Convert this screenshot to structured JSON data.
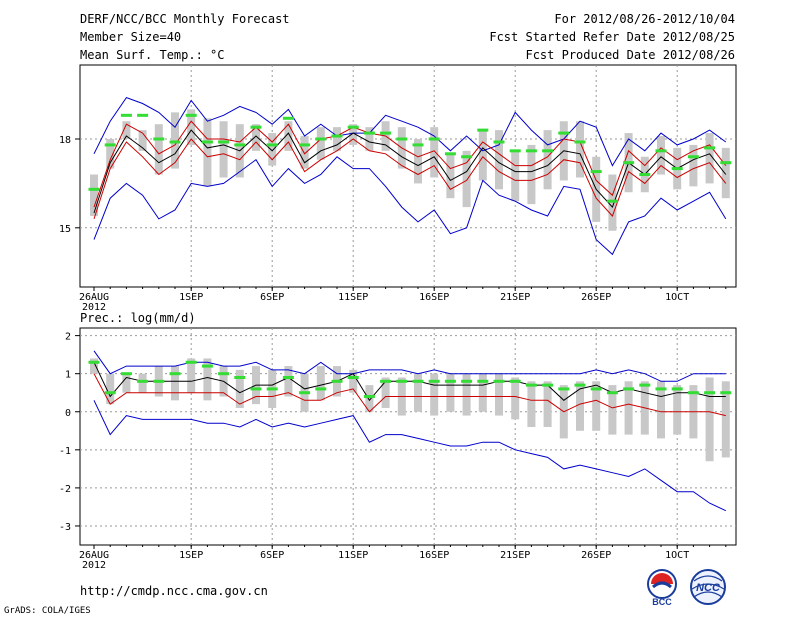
{
  "header": {
    "title": "DERF/NCC/BCC Monthly Forecast",
    "member_size": "Member Size=40",
    "variable": "Mean Surf. Temp.: °C",
    "period": "For 2012/08/26-2012/10/04",
    "start_date": "Fcst Started Refer Date 2012/08/25",
    "produced_date": "Fcst Produced Date 2012/08/26"
  },
  "footer": {
    "url": "http://cmdp.ncc.cma.gov.cn",
    "credit": "GrADS: COLA/IGES",
    "logo_bcc": "BCC",
    "logo_ncc": "NCC"
  },
  "colors": {
    "max_min": "#0000cc",
    "pct": "#cc0000",
    "mean": "#000000",
    "obs": "#33dd33",
    "bar": "#c8c8c8"
  },
  "chart_data": [
    {
      "type": "line",
      "title": "Mean Surf. Temp.: °C",
      "x_labels": [
        "26AUG",
        "1SEP",
        "6SEP",
        "11SEP",
        "16SEP",
        "21SEP",
        "26SEP",
        "1OCT"
      ],
      "x_label_days": [
        0,
        6,
        11,
        16,
        21,
        26,
        31,
        36
      ],
      "x_year": "2012",
      "y_ticks": [
        15,
        18
      ],
      "ylim": [
        13.0,
        20.5
      ],
      "series": [
        {
          "name": "max",
          "values": [
            17.5,
            18.6,
            19.4,
            19.2,
            18.9,
            18.4,
            19.3,
            18.6,
            18.8,
            19.1,
            18.9,
            18.5,
            19.0,
            18.1,
            18.5,
            18.1,
            18.2,
            18.2,
            18.8,
            18.6,
            18.4,
            18.1,
            17.6,
            18.1,
            17.6,
            17.8,
            18.9,
            18.3,
            17.8,
            18.0,
            18.6,
            18.4,
            17.1,
            18.0,
            17.6,
            18.2,
            17.8,
            18.0,
            18.3,
            17.9
          ]
        },
        {
          "name": "p75",
          "values": [
            15.7,
            17.3,
            18.5,
            18.2,
            17.5,
            17.8,
            18.6,
            18.0,
            18.0,
            17.9,
            18.4,
            17.9,
            18.5,
            17.5,
            18.0,
            18.1,
            18.4,
            18.2,
            18.1,
            17.7,
            17.4,
            17.6,
            17.0,
            17.2,
            17.9,
            17.5,
            17.1,
            17.1,
            17.4,
            18.0,
            17.9,
            16.6,
            16.1,
            17.6,
            17.1,
            17.7,
            17.3,
            17.6,
            17.8,
            17.1
          ]
        },
        {
          "name": "mean",
          "values": [
            15.5,
            17.2,
            18.1,
            17.7,
            17.2,
            17.5,
            18.3,
            17.7,
            17.8,
            17.6,
            18.1,
            17.6,
            18.2,
            17.2,
            17.6,
            17.8,
            18.2,
            17.9,
            17.8,
            17.4,
            17.1,
            17.4,
            16.6,
            16.9,
            17.7,
            17.2,
            16.9,
            16.9,
            17.1,
            17.6,
            17.5,
            16.3,
            15.7,
            17.2,
            16.8,
            17.4,
            17.0,
            17.3,
            17.5,
            16.8
          ]
        },
        {
          "name": "p25",
          "values": [
            15.3,
            17.0,
            17.9,
            17.4,
            16.8,
            17.2,
            18.0,
            17.4,
            17.5,
            17.3,
            17.9,
            17.3,
            17.9,
            16.9,
            17.3,
            17.6,
            18.0,
            17.6,
            17.5,
            17.1,
            16.8,
            17.1,
            16.3,
            16.6,
            17.4,
            16.9,
            16.6,
            16.6,
            16.8,
            17.3,
            17.2,
            16.0,
            15.4,
            16.9,
            16.5,
            17.1,
            16.7,
            17.0,
            17.2,
            16.5
          ]
        },
        {
          "name": "min",
          "values": [
            14.6,
            16.0,
            16.5,
            16.1,
            15.3,
            15.6,
            16.5,
            16.4,
            16.5,
            16.9,
            17.3,
            16.4,
            17.0,
            16.5,
            16.8,
            17.4,
            17.0,
            17.0,
            16.4,
            15.7,
            15.2,
            15.6,
            14.8,
            15.0,
            16.6,
            16.1,
            15.9,
            15.6,
            15.4,
            16.4,
            16.3,
            14.6,
            14.1,
            15.2,
            15.4,
            16.0,
            15.6,
            15.9,
            16.2,
            15.3
          ]
        }
      ],
      "obs": [
        16.3,
        17.8,
        18.8,
        18.8,
        18.0,
        17.9,
        18.8,
        17.9,
        17.9,
        17.8,
        18.4,
        17.8,
        18.7,
        17.8,
        18.0,
        18.1,
        18.4,
        18.2,
        18.2,
        18.0,
        17.8,
        18.0,
        17.5,
        17.4,
        18.3,
        17.9,
        17.6,
        17.6,
        17.6,
        18.2,
        17.9,
        16.9,
        15.9,
        17.2,
        16.8,
        17.6,
        17.0,
        17.4,
        17.7,
        17.2
      ],
      "box_low": [
        15.4,
        17.0,
        18.0,
        17.6,
        16.8,
        17.0,
        17.8,
        16.4,
        16.7,
        16.7,
        17.6,
        17.1,
        17.6,
        17.0,
        17.3,
        17.6,
        17.8,
        17.6,
        17.6,
        17.0,
        16.5,
        16.7,
        16.0,
        15.7,
        16.6,
        16.3,
        15.9,
        15.8,
        16.3,
        16.6,
        16.7,
        15.2,
        14.9,
        16.2,
        16.2,
        16.8,
        16.3,
        16.4,
        16.5,
        16.0
      ],
      "box_high": [
        16.8,
        18.0,
        18.6,
        18.3,
        18.5,
        18.9,
        19.0,
        18.7,
        18.6,
        18.5,
        18.5,
        18.2,
        18.6,
        18.1,
        18.4,
        18.4,
        18.5,
        18.4,
        18.6,
        18.4,
        18.0,
        18.4,
        17.5,
        17.6,
        18.3,
        18.3,
        17.6,
        17.8,
        18.3,
        18.6,
        18.6,
        17.4,
        16.8,
        18.2,
        17.4,
        18.1,
        17.7,
        17.8,
        18.2,
        17.7
      ]
    },
    {
      "type": "line",
      "title": "Prec.: log(mm/d)",
      "x_labels": [
        "26AUG",
        "1SEP",
        "6SEP",
        "11SEP",
        "16SEP",
        "21SEP",
        "26SEP",
        "1OCT"
      ],
      "x_label_days": [
        0,
        6,
        11,
        16,
        21,
        26,
        31,
        36
      ],
      "x_year": "2012",
      "y_ticks": [
        -3,
        -2,
        -1,
        0,
        1,
        2
      ],
      "ylim": [
        -3.5,
        2.2
      ],
      "series": [
        {
          "name": "max",
          "values": [
            1.6,
            1.0,
            1.2,
            1.2,
            1.2,
            1.2,
            1.3,
            1.3,
            1.2,
            1.2,
            1.3,
            1.1,
            1.1,
            1.0,
            1.3,
            1.0,
            1.0,
            1.1,
            1.1,
            1.1,
            1.0,
            1.1,
            1.0,
            1.0,
            1.0,
            1.0,
            1.0,
            1.0,
            1.0,
            1.0,
            1.0,
            1.1,
            1.0,
            1.1,
            1.0,
            0.8,
            0.8,
            1.0,
            1.0,
            1.0
          ]
        },
        {
          "name": "mean",
          "values": [
            1.3,
            0.4,
            0.9,
            0.8,
            0.8,
            0.8,
            0.8,
            0.9,
            0.8,
            0.5,
            0.7,
            0.7,
            0.9,
            0.6,
            0.7,
            0.8,
            1.0,
            0.3,
            0.8,
            0.8,
            0.8,
            0.7,
            0.7,
            0.7,
            0.7,
            0.8,
            0.8,
            0.7,
            0.7,
            0.3,
            0.6,
            0.7,
            0.5,
            0.6,
            0.5,
            0.4,
            0.5,
            0.5,
            0.4,
            0.4
          ]
        },
        {
          "name": "p25",
          "values": [
            1.0,
            0.2,
            0.5,
            0.5,
            0.5,
            0.5,
            0.5,
            0.5,
            0.5,
            0.2,
            0.4,
            0.4,
            0.5,
            0.3,
            0.3,
            0.5,
            0.6,
            0.0,
            0.4,
            0.4,
            0.4,
            0.4,
            0.4,
            0.4,
            0.4,
            0.4,
            0.4,
            0.3,
            0.3,
            0.0,
            0.2,
            0.3,
            0.1,
            0.2,
            0.1,
            0.0,
            0.0,
            0.0,
            0.0,
            -0.1
          ]
        },
        {
          "name": "min",
          "values": [
            0.3,
            -0.6,
            -0.1,
            -0.2,
            -0.2,
            -0.2,
            -0.2,
            -0.3,
            -0.3,
            -0.4,
            -0.2,
            -0.4,
            -0.3,
            -0.4,
            -0.3,
            -0.2,
            -0.1,
            -0.8,
            -0.6,
            -0.6,
            -0.7,
            -0.8,
            -0.9,
            -0.9,
            -0.8,
            -0.8,
            -1.0,
            -1.1,
            -1.2,
            -1.5,
            -1.4,
            -1.5,
            -1.6,
            -1.7,
            -1.5,
            -1.8,
            -2.1,
            -2.1,
            -2.4,
            -2.6
          ]
        }
      ],
      "obs": [
        1.3,
        0.5,
        1.0,
        0.8,
        0.8,
        1.0,
        1.3,
        1.2,
        1.0,
        0.9,
        0.6,
        0.6,
        0.9,
        0.5,
        0.6,
        0.8,
        0.9,
        0.4,
        0.8,
        0.8,
        0.8,
        0.8,
        0.8,
        0.8,
        0.8,
        0.8,
        0.8,
        0.7,
        0.7,
        0.6,
        0.7,
        0.6,
        0.5,
        0.6,
        0.7,
        0.6,
        0.6,
        0.5,
        0.5,
        0.5
      ],
      "box_low": [
        1.0,
        0.2,
        0.5,
        0.5,
        0.4,
        0.3,
        0.5,
        0.3,
        0.4,
        0.1,
        0.2,
        0.1,
        0.4,
        0.0,
        0.3,
        0.4,
        0.5,
        0.0,
        0.1,
        -0.1,
        0.0,
        -0.1,
        0.0,
        -0.1,
        0.0,
        -0.1,
        -0.2,
        -0.4,
        -0.4,
        -0.7,
        -0.5,
        -0.5,
        -0.6,
        -0.6,
        -0.6,
        -0.7,
        -0.6,
        -0.7,
        -1.3,
        -1.2
      ],
      "box_high": [
        1.4,
        1.0,
        1.0,
        1.0,
        1.2,
        1.2,
        1.4,
        1.4,
        1.2,
        1.1,
        1.2,
        1.1,
        1.2,
        1.0,
        1.2,
        1.2,
        1.1,
        0.7,
        0.9,
        0.9,
        1.0,
        1.0,
        1.0,
        1.0,
        1.0,
        1.0,
        0.9,
        0.8,
        0.8,
        0.7,
        0.8,
        0.8,
        0.7,
        0.8,
        0.8,
        0.8,
        0.7,
        0.7,
        0.9,
        0.8
      ]
    }
  ]
}
